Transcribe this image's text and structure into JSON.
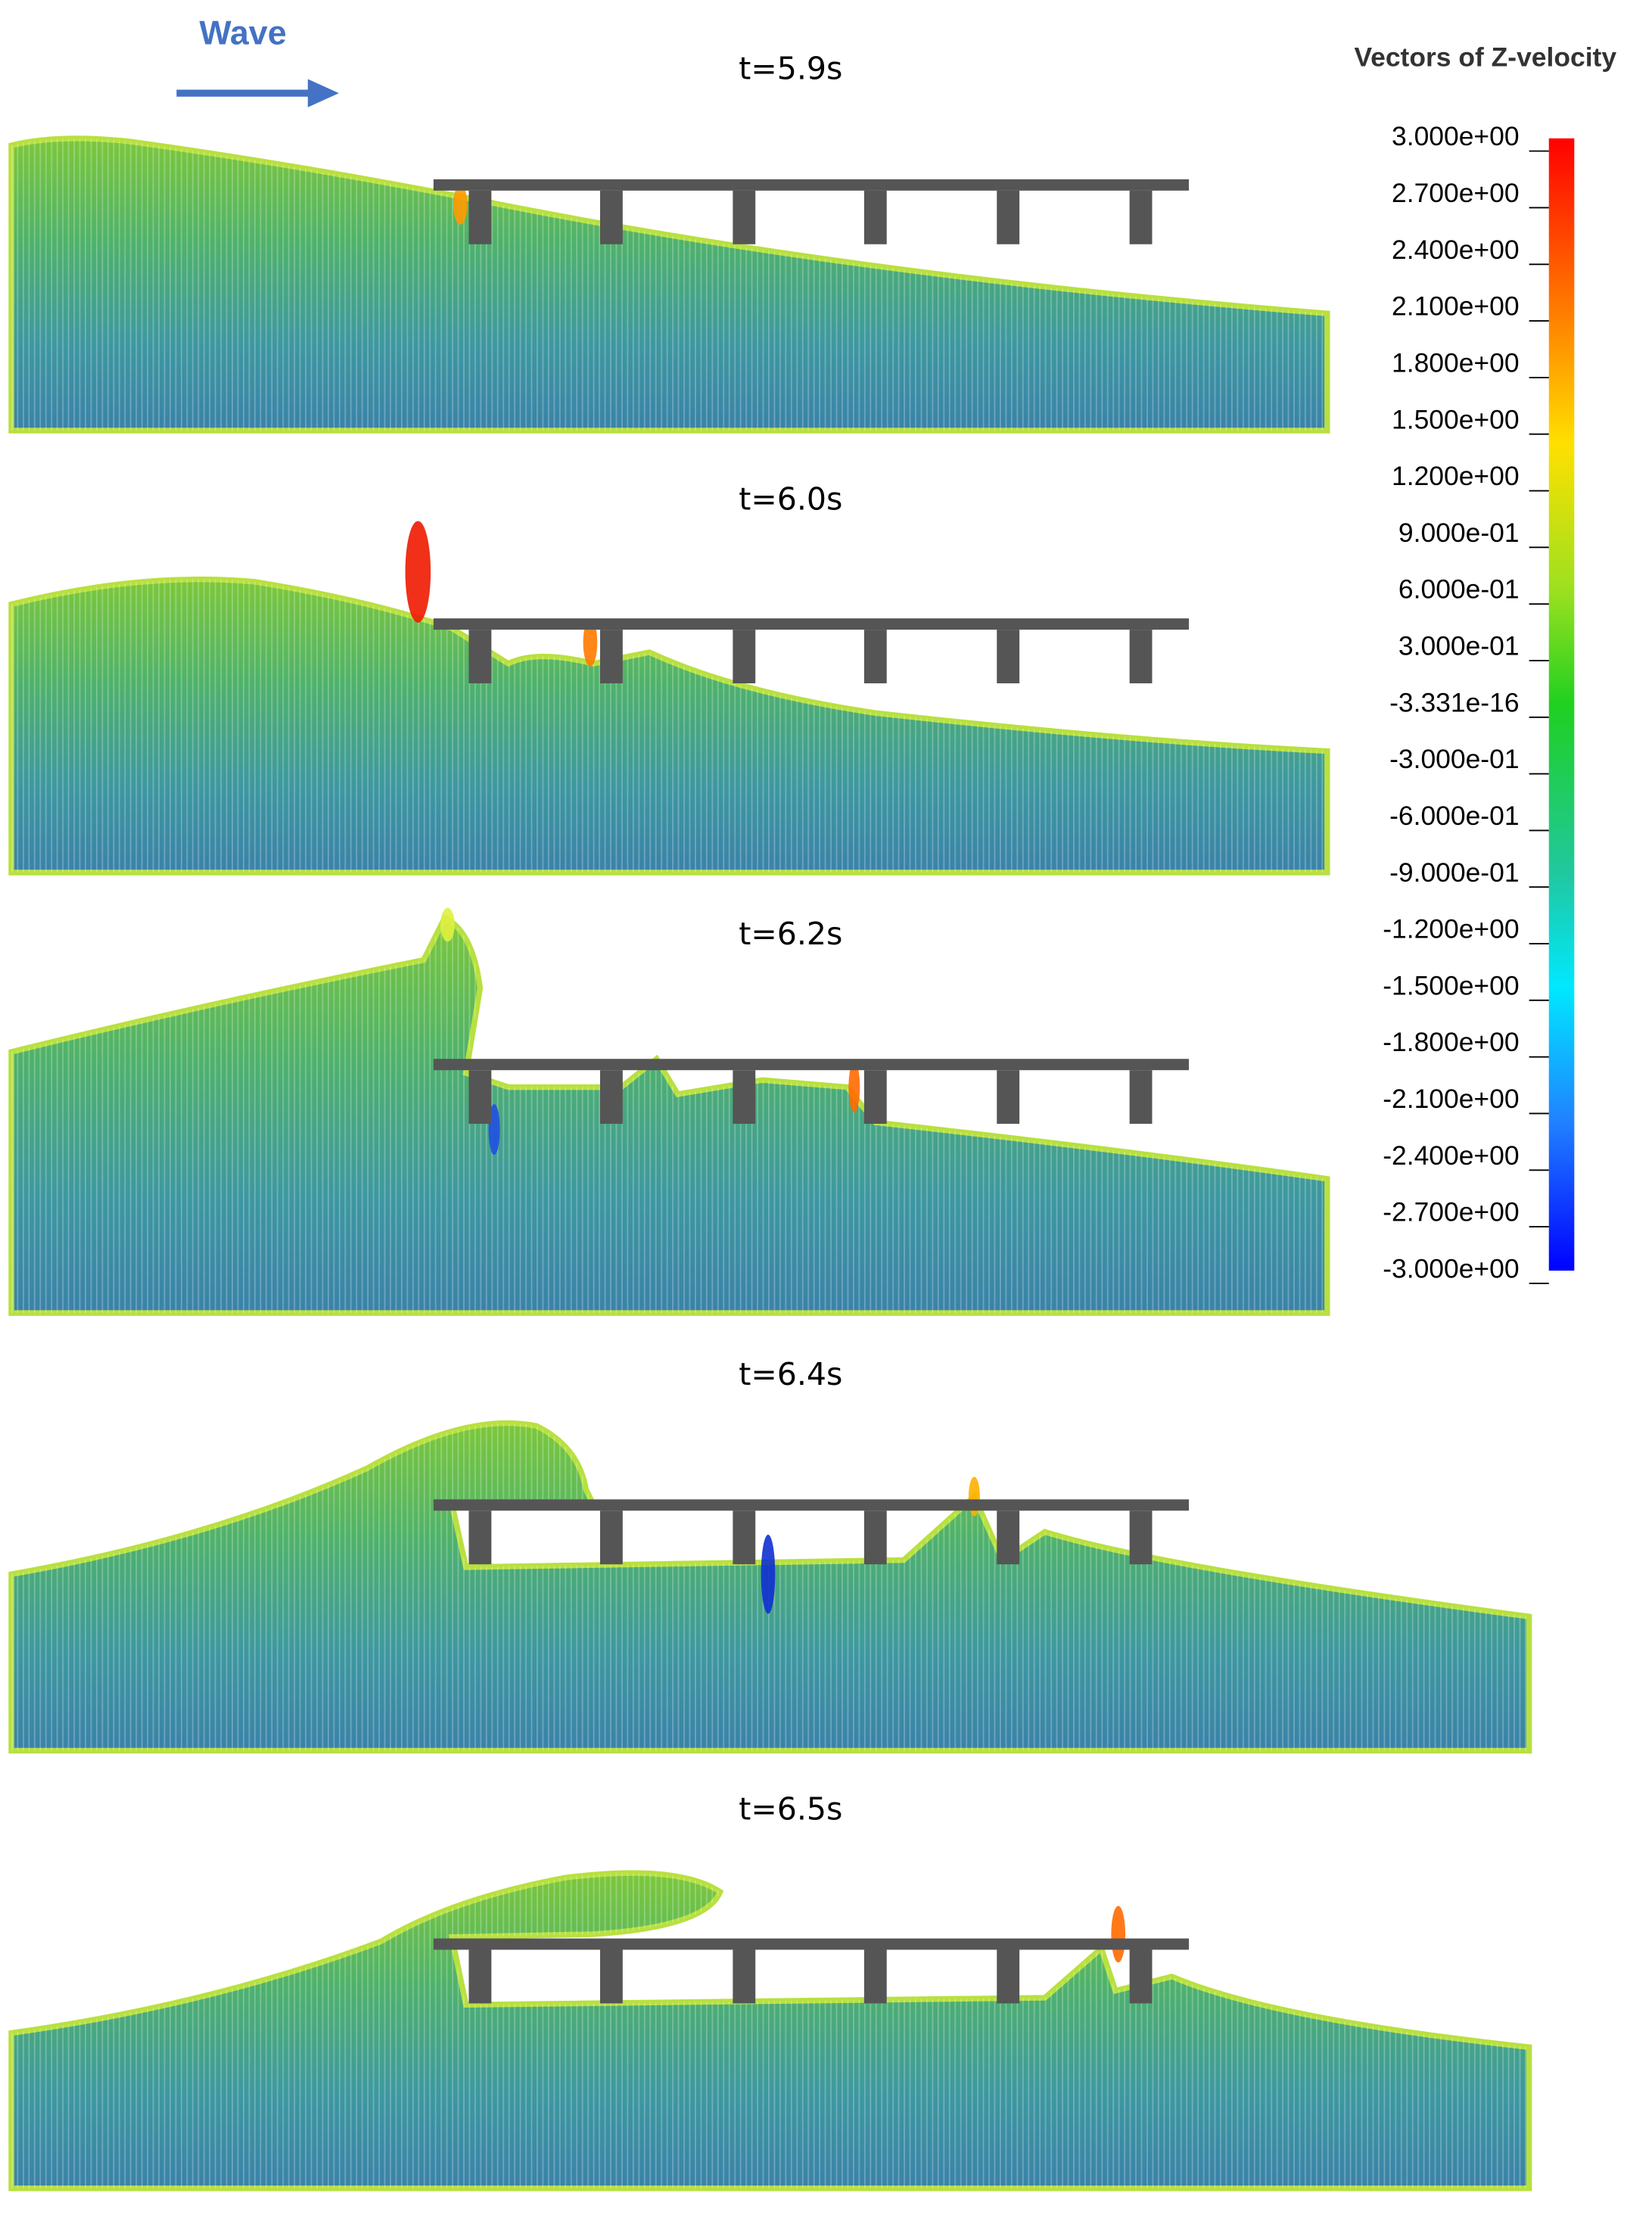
{
  "wave_label": "Wave",
  "panels": [
    {
      "label": "t=5.9s"
    },
    {
      "label": "t=6.0s"
    },
    {
      "label": "t=6.2s"
    },
    {
      "label": "t=6.4s"
    },
    {
      "label": "t=6.5s"
    }
  ],
  "legend": {
    "title": "Vectors of Z-velocity",
    "ticks": [
      "3.000e+00",
      "2.700e+00",
      "2.400e+00",
      "2.100e+00",
      "1.800e+00",
      "1.500e+00",
      "1.200e+00",
      "9.000e-01",
      "6.000e-01",
      "3.000e-01",
      "-3.331e-16",
      "-3.000e-01",
      "-6.000e-01",
      "-9.000e-01",
      "-1.200e+00",
      "-1.500e+00",
      "-1.800e+00",
      "-2.100e+00",
      "-2.400e+00",
      "-2.700e+00",
      "-3.000e+00"
    ]
  }
}
